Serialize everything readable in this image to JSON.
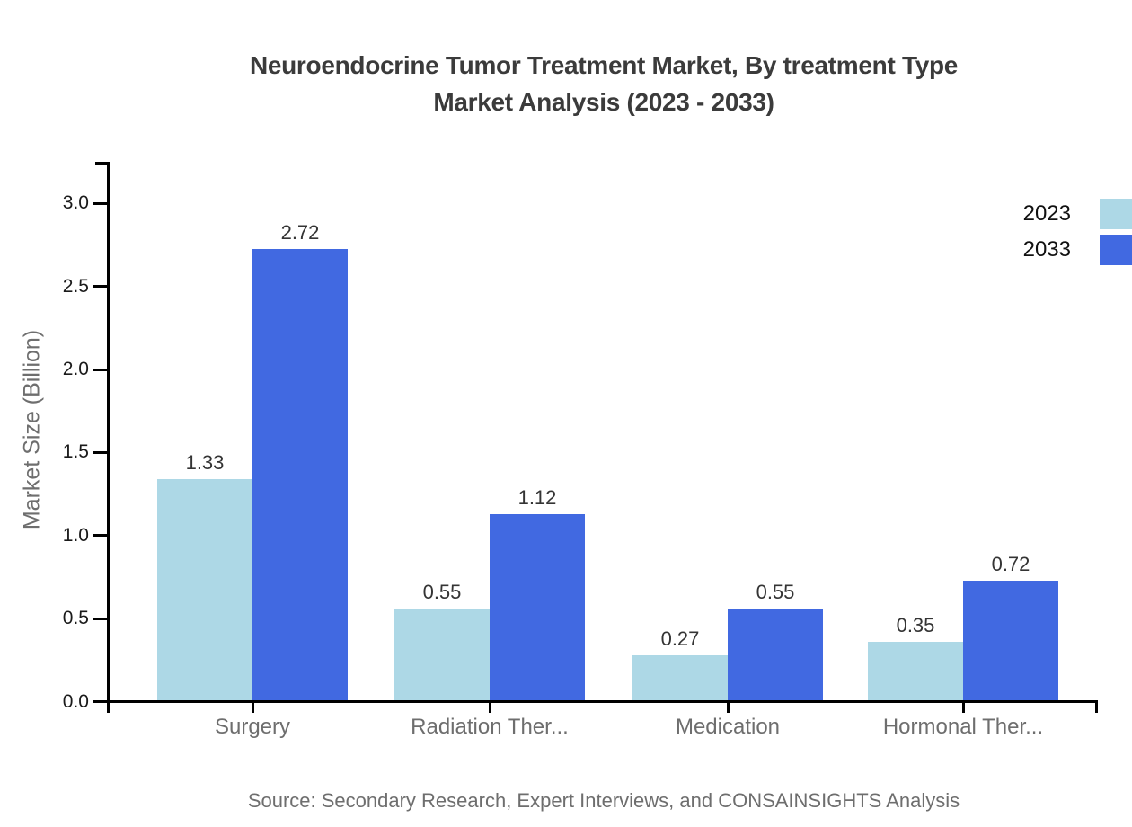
{
  "title": {
    "line1": "Neuroendocrine Tumor Treatment Market, By treatment Type",
    "line2": "Market Analysis (2023 - 2033)"
  },
  "y_axis": {
    "label": "Market Size (Billion)"
  },
  "legend": [
    {
      "label": "2023",
      "color": "#ADD8E6"
    },
    {
      "label": "2033",
      "color": "#4169E1"
    }
  ],
  "source": "Source: Secondary Research, Expert Interviews, and CONSAINSIGHTS Analysis",
  "colors": {
    "series_2023": "#ADD8E6",
    "series_2033": "#4169E1",
    "axis": "#000000",
    "title_text": "#3b3b3b",
    "muted_text": "#6e6e6e",
    "value_label_text": "#343434",
    "tick_label_text": "#1a1a1a"
  },
  "chart_data": {
    "type": "bar",
    "title": "Neuroendocrine Tumor Treatment Market, By treatment Type Market Analysis (2023 - 2033)",
    "categories": [
      "Surgery",
      "Radiation Ther...",
      "Medication",
      "Hormonal Ther..."
    ],
    "series": [
      {
        "name": "2023",
        "color": "#ADD8E6",
        "values": [
          1.33,
          0.55,
          0.27,
          0.35
        ]
      },
      {
        "name": "2033",
        "color": "#4169E1",
        "values": [
          2.72,
          1.12,
          0.55,
          0.72
        ]
      }
    ],
    "value_labels": [
      [
        "1.33",
        "0.55",
        "0.27",
        "0.35"
      ],
      [
        "2.72",
        "1.12",
        "0.55",
        "0.72"
      ]
    ],
    "xlabel": "",
    "ylabel": "Market Size (Billion)",
    "ylim": [
      0,
      3.25
    ],
    "yticks": [
      0.0,
      0.5,
      1.0,
      1.5,
      2.0,
      2.5,
      3.0
    ],
    "grid": false,
    "legend_position": "top-right",
    "bar_value_labels_shown": true
  }
}
